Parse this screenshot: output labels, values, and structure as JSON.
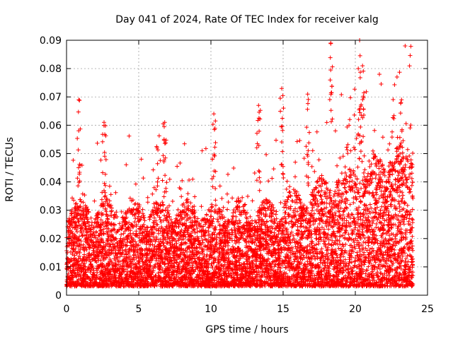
{
  "chart_data": {
    "type": "scatter",
    "title": "Day 041 of 2024, Rate Of TEC Index for receiver kalg",
    "xlabel": "GPS time / hours",
    "ylabel": "ROTI / TECUs",
    "xlim": [
      0,
      25
    ],
    "ylim": [
      0,
      0.09
    ],
    "xticks": [
      0,
      5,
      10,
      15,
      20,
      25
    ],
    "yticks": [
      0,
      0.01,
      0.02,
      0.03,
      0.04,
      0.05,
      0.06,
      0.07,
      0.08,
      0.09
    ],
    "xtick_labels": [
      "0",
      "5",
      "10",
      "15",
      "20",
      "25"
    ],
    "ytick_labels": [
      "0",
      "0.01",
      "0.02",
      "0.03",
      "0.04",
      "0.05",
      "0.06",
      "0.07",
      "0.08",
      "0.09"
    ],
    "grid": true,
    "marker": "plus",
    "color": "#ff0000",
    "series": [
      {
        "x_range": [
          0,
          24
        ],
        "baseline_roti": 0.009,
        "peaks": [
          {
            "x": 0.85,
            "y": 0.069
          },
          {
            "x": 2.6,
            "y": 0.061
          },
          {
            "x": 6.8,
            "y": 0.061
          },
          {
            "x": 10.2,
            "y": 0.064
          },
          {
            "x": 13.3,
            "y": 0.067
          },
          {
            "x": 14.9,
            "y": 0.073
          },
          {
            "x": 16.7,
            "y": 0.071
          },
          {
            "x": 18.3,
            "y": 0.089
          },
          {
            "x": 20.3,
            "y": 0.09
          },
          {
            "x": 20.5,
            "y": 0.081
          },
          {
            "x": 23.2,
            "y": 0.069
          }
        ]
      }
    ]
  }
}
